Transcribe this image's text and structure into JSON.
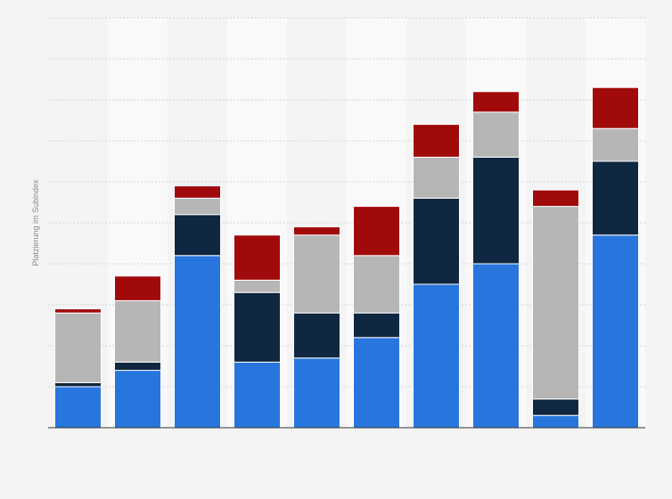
{
  "chart_data": {
    "type": "bar",
    "stacked": true,
    "title": "",
    "xlabel": "",
    "ylabel": "Platzierung im Subindex",
    "ylim": [
      0,
      100
    ],
    "grid": true,
    "categories": [
      "",
      "",
      "",
      "",
      "",
      "",
      "",
      "",
      "",
      ""
    ],
    "series": [
      {
        "color": "#2876dd",
        "values": [
          10,
          14,
          42,
          16,
          17,
          22,
          35,
          40,
          3,
          47
        ]
      },
      {
        "color": "#0f2741",
        "values": [
          1,
          2,
          10,
          17,
          11,
          6,
          21,
          26,
          4,
          18
        ]
      },
      {
        "color": "#b6b6b6",
        "values": [
          17,
          15,
          4,
          3,
          19,
          14,
          10,
          11,
          47,
          8
        ]
      },
      {
        "color": "#a10a0a",
        "values": [
          1,
          6,
          3,
          11,
          2,
          12,
          8,
          5,
          4,
          10
        ]
      }
    ]
  }
}
